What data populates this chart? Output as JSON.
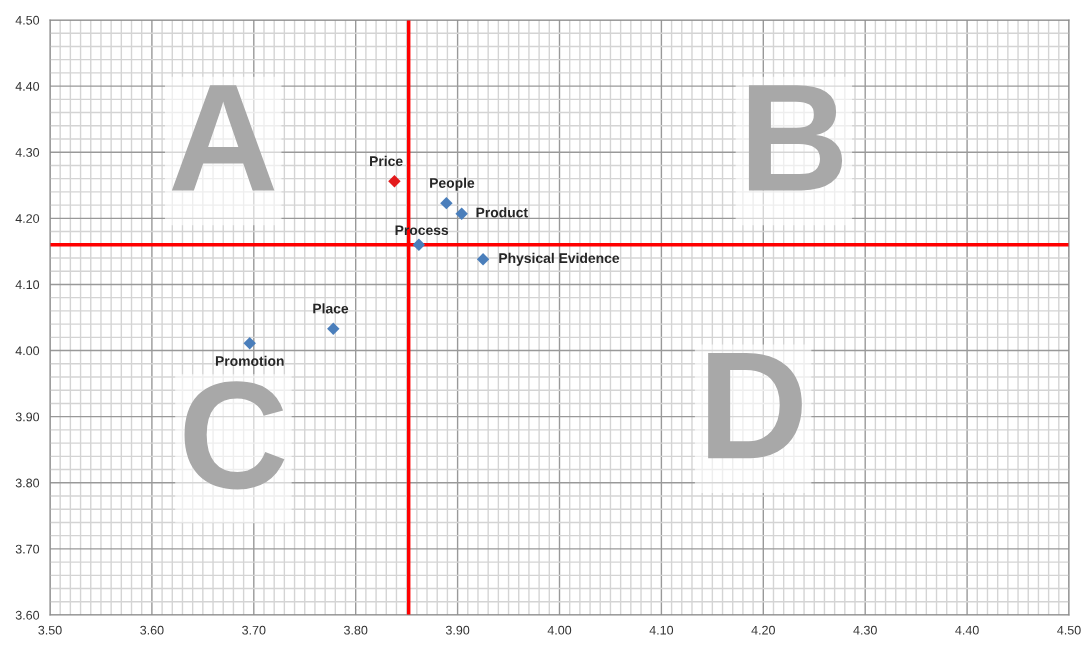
{
  "chart_data": {
    "type": "scatter",
    "marker": "diamond",
    "grid": true,
    "legend": false,
    "xlim": [
      3.5,
      4.5
    ],
    "ylim": [
      3.6,
      4.5
    ],
    "xticks": [
      {
        "value": 3.5,
        "label": "3.50"
      },
      {
        "value": 3.6,
        "label": "3.60"
      },
      {
        "value": 3.7,
        "label": "3.70"
      },
      {
        "value": 3.8,
        "label": "3.80"
      },
      {
        "value": 3.9,
        "label": "3.90"
      },
      {
        "value": 4.0,
        "label": "4.00"
      },
      {
        "value": 4.1,
        "label": "4.10"
      },
      {
        "value": 4.2,
        "label": "4.20"
      },
      {
        "value": 4.3,
        "label": "4.30"
      },
      {
        "value": 4.4,
        "label": "4.40"
      },
      {
        "value": 4.5,
        "label": "4.50"
      }
    ],
    "yticks": [
      {
        "value": 3.6,
        "label": "3.60"
      },
      {
        "value": 3.7,
        "label": "3.70"
      },
      {
        "value": 3.8,
        "label": "3.80"
      },
      {
        "value": 3.9,
        "label": "3.90"
      },
      {
        "value": 4.0,
        "label": "4.00"
      },
      {
        "value": 4.1,
        "label": "4.10"
      },
      {
        "value": 4.2,
        "label": "4.20"
      },
      {
        "value": 4.3,
        "label": "4.30"
      },
      {
        "value": 4.4,
        "label": "4.40"
      },
      {
        "value": 4.5,
        "label": "4.50"
      }
    ],
    "series": [
      {
        "name": "Price",
        "color": "#e31a1c",
        "x": [
          3.838
        ],
        "values": [
          4.256
        ]
      },
      {
        "name": "People",
        "color": "#4a7ebb",
        "x": [
          3.889
        ],
        "values": [
          4.223
        ]
      },
      {
        "name": "Product",
        "color": "#4a7ebb",
        "x": [
          3.904
        ],
        "values": [
          4.207
        ]
      },
      {
        "name": "Process",
        "color": "#4a7ebb",
        "x": [
          3.862
        ],
        "values": [
          4.16
        ]
      },
      {
        "name": "Physical Evidence",
        "color": "#4a7ebb",
        "x": [
          3.925
        ],
        "values": [
          4.138
        ]
      },
      {
        "name": "Place",
        "color": "#4a7ebb",
        "x": [
          3.778
        ],
        "values": [
          4.033
        ]
      },
      {
        "name": "Promotion",
        "color": "#4a7ebb",
        "x": [
          3.696
        ],
        "values": [
          4.011
        ]
      }
    ],
    "ref_lines": [
      {
        "axis": "x",
        "value": 3.852,
        "color": "#ff0000"
      },
      {
        "axis": "y",
        "value": 4.16,
        "color": "#ff0000"
      }
    ],
    "annotations": [
      "A",
      "B",
      "C",
      "D"
    ]
  }
}
